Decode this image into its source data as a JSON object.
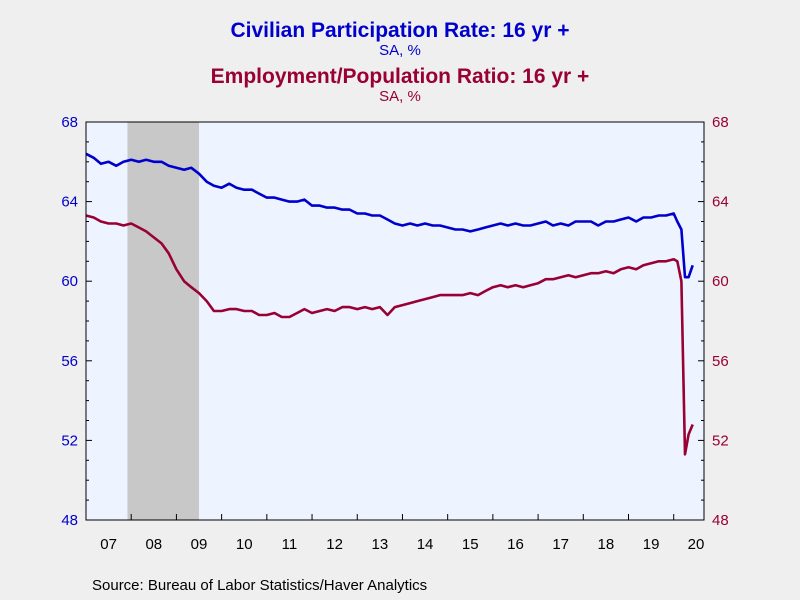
{
  "chart_data": {
    "type": "line",
    "title": "Civilian Participation Rate: 16 yr +",
    "subtitle": "SA, %",
    "title2": "Employment/Population Ratio: 16 yr +",
    "subtitle2": "SA, %",
    "source": "Source:  Bureau of Labor Statistics/Haver Analytics",
    "x_tick_labels": [
      "07",
      "08",
      "09",
      "10",
      "11",
      "12",
      "13",
      "14",
      "15",
      "16",
      "17",
      "18",
      "19",
      "20"
    ],
    "x_range": [
      2007.0,
      2020.67
    ],
    "y_left": {
      "range": [
        48,
        68
      ],
      "ticks": [
        "48",
        "52",
        "56",
        "60",
        "64",
        "68"
      ]
    },
    "y_right": {
      "range": [
        48,
        68
      ],
      "ticks": [
        "48",
        "52",
        "56",
        "60",
        "64",
        "68"
      ]
    },
    "recession_shading": [
      2007.917,
      2009.5
    ],
    "grid": false,
    "series": [
      {
        "name": "Civilian Participation Rate: 16 yr +",
        "color": "#0000cc",
        "axis": "left",
        "x": [
          2007.0,
          2007.17,
          2007.33,
          2007.5,
          2007.67,
          2007.83,
          2008.0,
          2008.17,
          2008.33,
          2008.5,
          2008.67,
          2008.83,
          2009.0,
          2009.17,
          2009.33,
          2009.5,
          2009.67,
          2009.83,
          2010.0,
          2010.17,
          2010.33,
          2010.5,
          2010.67,
          2010.83,
          2011.0,
          2011.17,
          2011.33,
          2011.5,
          2011.67,
          2011.83,
          2012.0,
          2012.17,
          2012.33,
          2012.5,
          2012.67,
          2012.83,
          2013.0,
          2013.17,
          2013.33,
          2013.5,
          2013.67,
          2013.83,
          2014.0,
          2014.17,
          2014.33,
          2014.5,
          2014.67,
          2014.83,
          2015.0,
          2015.17,
          2015.33,
          2015.5,
          2015.67,
          2015.83,
          2016.0,
          2016.17,
          2016.33,
          2016.5,
          2016.67,
          2016.83,
          2017.0,
          2017.17,
          2017.33,
          2017.5,
          2017.67,
          2017.83,
          2018.0,
          2018.17,
          2018.33,
          2018.5,
          2018.67,
          2018.83,
          2019.0,
          2019.17,
          2019.33,
          2019.5,
          2019.67,
          2019.83,
          2020.0,
          2020.08,
          2020.17,
          2020.25,
          2020.33,
          2020.42
        ],
        "y": [
          66.4,
          66.2,
          65.9,
          66.0,
          65.8,
          66.0,
          66.1,
          66.0,
          66.1,
          66.0,
          66.0,
          65.8,
          65.7,
          65.6,
          65.7,
          65.4,
          65.0,
          64.8,
          64.7,
          64.9,
          64.7,
          64.6,
          64.6,
          64.4,
          64.2,
          64.2,
          64.1,
          64.0,
          64.0,
          64.1,
          63.8,
          63.8,
          63.7,
          63.7,
          63.6,
          63.6,
          63.4,
          63.4,
          63.3,
          63.3,
          63.1,
          62.9,
          62.8,
          62.9,
          62.8,
          62.9,
          62.8,
          62.8,
          62.7,
          62.6,
          62.6,
          62.5,
          62.6,
          62.7,
          62.8,
          62.9,
          62.8,
          62.9,
          62.8,
          62.8,
          62.9,
          63.0,
          62.8,
          62.9,
          62.8,
          63.0,
          63.0,
          63.0,
          62.8,
          63.0,
          63.0,
          63.1,
          63.2,
          63.0,
          63.2,
          63.2,
          63.3,
          63.3,
          63.4,
          63.0,
          62.6,
          60.2,
          60.2,
          60.8
        ]
      },
      {
        "name": "Employment/Population Ratio: 16 yr +",
        "color": "#990033",
        "axis": "right",
        "x": [
          2007.0,
          2007.17,
          2007.33,
          2007.5,
          2007.67,
          2007.83,
          2008.0,
          2008.17,
          2008.33,
          2008.5,
          2008.67,
          2008.83,
          2009.0,
          2009.17,
          2009.33,
          2009.5,
          2009.67,
          2009.83,
          2010.0,
          2010.17,
          2010.33,
          2010.5,
          2010.67,
          2010.83,
          2011.0,
          2011.17,
          2011.33,
          2011.5,
          2011.67,
          2011.83,
          2012.0,
          2012.17,
          2012.33,
          2012.5,
          2012.67,
          2012.83,
          2013.0,
          2013.17,
          2013.33,
          2013.5,
          2013.67,
          2013.83,
          2014.0,
          2014.17,
          2014.33,
          2014.5,
          2014.67,
          2014.83,
          2015.0,
          2015.17,
          2015.33,
          2015.5,
          2015.67,
          2015.83,
          2016.0,
          2016.17,
          2016.33,
          2016.5,
          2016.67,
          2016.83,
          2017.0,
          2017.17,
          2017.33,
          2017.5,
          2017.67,
          2017.83,
          2018.0,
          2018.17,
          2018.33,
          2018.5,
          2018.67,
          2018.83,
          2019.0,
          2019.17,
          2019.33,
          2019.5,
          2019.67,
          2019.83,
          2020.0,
          2020.08,
          2020.17,
          2020.25,
          2020.33,
          2020.42
        ],
        "y": [
          63.3,
          63.2,
          63.0,
          62.9,
          62.9,
          62.8,
          62.9,
          62.7,
          62.5,
          62.2,
          61.9,
          61.4,
          60.6,
          60.0,
          59.7,
          59.4,
          59.0,
          58.5,
          58.5,
          58.6,
          58.6,
          58.5,
          58.5,
          58.3,
          58.3,
          58.4,
          58.2,
          58.2,
          58.4,
          58.6,
          58.4,
          58.5,
          58.6,
          58.5,
          58.7,
          58.7,
          58.6,
          58.7,
          58.6,
          58.7,
          58.3,
          58.7,
          58.8,
          58.9,
          59.0,
          59.1,
          59.2,
          59.3,
          59.3,
          59.3,
          59.3,
          59.4,
          59.3,
          59.5,
          59.7,
          59.8,
          59.7,
          59.8,
          59.7,
          59.8,
          59.9,
          60.1,
          60.1,
          60.2,
          60.3,
          60.2,
          60.3,
          60.4,
          60.4,
          60.5,
          60.4,
          60.6,
          60.7,
          60.6,
          60.8,
          60.9,
          61.0,
          61.0,
          61.1,
          61.0,
          60.0,
          51.3,
          52.3,
          52.8
        ]
      }
    ]
  }
}
